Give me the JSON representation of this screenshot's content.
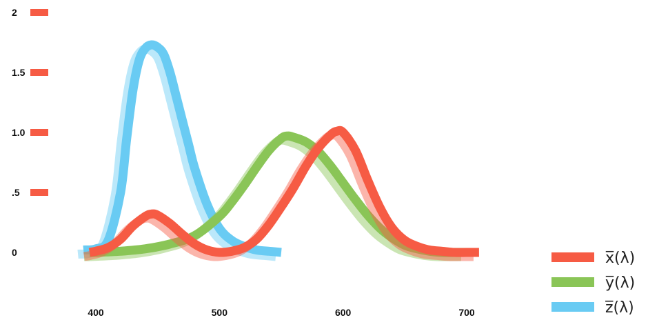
{
  "chart_data": {
    "type": "line",
    "title": "",
    "xlabel": "",
    "ylabel": "",
    "xlim": [
      380,
      720
    ],
    "ylim": [
      0,
      2
    ],
    "grid": false,
    "legend_placement": "bottom-right",
    "x_ticks": [
      {
        "value": 400,
        "label": "400"
      },
      {
        "value": 500,
        "label": "500"
      },
      {
        "value": 600,
        "label": "600"
      },
      {
        "value": 700,
        "label": "700"
      }
    ],
    "y_ticks": [
      {
        "value": 0,
        "label": "0"
      },
      {
        "value": 0.5,
        "label": ".5"
      },
      {
        "value": 1.0,
        "label": "1.0"
      },
      {
        "value": 1.5,
        "label": "1.5"
      },
      {
        "value": 2,
        "label": "2"
      }
    ],
    "tick_mark_color": "#f65b44",
    "series": [
      {
        "name": "x̅(λ)",
        "color": "#f65b44",
        "x": [
          395,
          400,
          410,
          420,
          430,
          440,
          445,
          450,
          460,
          470,
          480,
          490,
          500,
          510,
          520,
          530,
          540,
          550,
          560,
          570,
          580,
          590,
          595,
          600,
          610,
          620,
          630,
          640,
          650,
          660,
          670,
          680,
          690,
          700,
          710
        ],
        "values": [
          0.0,
          0.01,
          0.04,
          0.11,
          0.22,
          0.3,
          0.32,
          0.31,
          0.24,
          0.15,
          0.07,
          0.02,
          0.0,
          0.01,
          0.04,
          0.11,
          0.23,
          0.38,
          0.54,
          0.72,
          0.87,
          0.98,
          1.01,
          1.0,
          0.85,
          0.6,
          0.37,
          0.2,
          0.1,
          0.05,
          0.02,
          0.01,
          0.0,
          0.0,
          0.0
        ]
      },
      {
        "name": "y̅(λ)",
        "color": "#8ac557",
        "x": [
          395,
          400,
          420,
          440,
          460,
          480,
          500,
          510,
          520,
          530,
          540,
          550,
          555,
          560,
          570,
          580,
          590,
          600,
          610,
          620,
          630,
          640,
          650,
          660,
          670,
          680,
          690,
          700
        ],
        "values": [
          0.0,
          0.0,
          0.01,
          0.03,
          0.07,
          0.14,
          0.3,
          0.42,
          0.56,
          0.71,
          0.85,
          0.95,
          0.97,
          0.96,
          0.92,
          0.84,
          0.72,
          0.58,
          0.44,
          0.31,
          0.2,
          0.12,
          0.06,
          0.03,
          0.01,
          0.0,
          0.0,
          0.0
        ]
      },
      {
        "name": "z̅(λ)",
        "color": "#69cbf3",
        "x": [
          390,
          400,
          410,
          420,
          425,
          430,
          435,
          440,
          445,
          450,
          455,
          460,
          465,
          470,
          475,
          480,
          490,
          500,
          510,
          520,
          530,
          540,
          550
        ],
        "values": [
          0.02,
          0.03,
          0.1,
          0.5,
          0.95,
          1.35,
          1.6,
          1.7,
          1.73,
          1.71,
          1.65,
          1.5,
          1.3,
          1.1,
          0.9,
          0.7,
          0.4,
          0.2,
          0.1,
          0.05,
          0.02,
          0.01,
          0.0
        ]
      }
    ]
  }
}
